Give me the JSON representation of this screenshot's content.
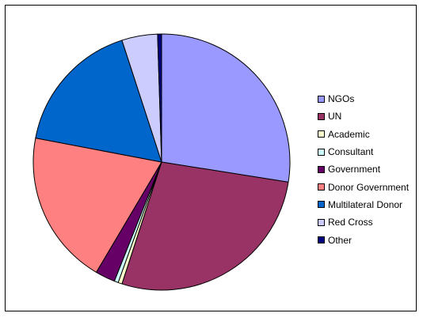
{
  "chart_data": {
    "type": "pie",
    "title": "",
    "start_angle_deg": 0,
    "direction": "clockwise",
    "legend_position": "right",
    "slices": [
      {
        "label": "NGOs",
        "value": 27.5,
        "color": "#9999FF"
      },
      {
        "label": "UN",
        "value": 27.5,
        "color": "#993366"
      },
      {
        "label": "Academic",
        "value": 0.5,
        "color": "#FFFFCC"
      },
      {
        "label": "Consultant",
        "value": 0.5,
        "color": "#CCFFFF"
      },
      {
        "label": "Government",
        "value": 2.5,
        "color": "#660066"
      },
      {
        "label": "Donor Government",
        "value": 19.5,
        "color": "#FF8080"
      },
      {
        "label": "Multilateral Donor",
        "value": 17.0,
        "color": "#0066CC"
      },
      {
        "label": "Red Cross",
        "value": 4.5,
        "color": "#CCCCFF"
      },
      {
        "label": "Other",
        "value": 0.5,
        "color": "#000080"
      }
    ]
  }
}
